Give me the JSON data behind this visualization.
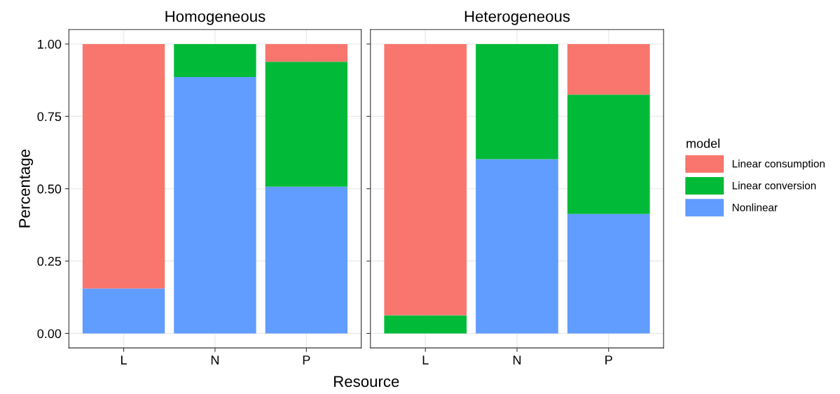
{
  "chart_data": [
    {
      "type": "bar",
      "title": "Homogeneous",
      "xlabel": "Resource",
      "ylabel": "Percentage",
      "legend_title": "model",
      "legend": "right",
      "grid": true,
      "stacked": true,
      "categories": [
        "L",
        "N",
        "P"
      ],
      "ylim": [
        -0.05,
        1.05
      ],
      "yticks": [
        {
          "value": 0,
          "label": "0.00"
        },
        {
          "value": 0.25,
          "label": "0.25"
        },
        {
          "value": 0.5,
          "label": "0.50"
        },
        {
          "value": 0.75,
          "label": "0.75"
        },
        {
          "value": 1,
          "label": "1.00"
        }
      ],
      "series": [
        {
          "name": "Nonlinear",
          "color": "#619cff",
          "values": [
            0.155,
            0.886,
            0.507
          ]
        },
        {
          "name": "Linear conversion",
          "color": "#00ba38",
          "values": [
            0,
            0.114,
            0.432
          ]
        },
        {
          "name": "Linear consumption",
          "color": "#f8766d",
          "values": [
            0.845,
            0,
            0.061
          ]
        }
      ]
    },
    {
      "type": "bar",
      "title": "Heterogeneous",
      "grid": true,
      "stacked": true,
      "tick_labels": "x",
      "categories": [
        "L",
        "N",
        "P"
      ],
      "ylim": [
        -0.05,
        1.05
      ],
      "yticks": [
        {
          "value": 0,
          "label": null
        },
        {
          "value": 0.25,
          "label": null
        },
        {
          "value": 0.5,
          "label": null
        },
        {
          "value": 0.75,
          "label": null
        },
        {
          "value": 1,
          "label": null
        }
      ],
      "series": [
        {
          "color": "#619cff",
          "values": [
            0,
            0.602,
            0.413
          ]
        },
        {
          "color": "#00ba38",
          "values": [
            0.063,
            0.398,
            0.412
          ]
        },
        {
          "color": "#f8766d",
          "values": [
            0.937,
            0,
            0.175
          ]
        }
      ]
    }
  ]
}
